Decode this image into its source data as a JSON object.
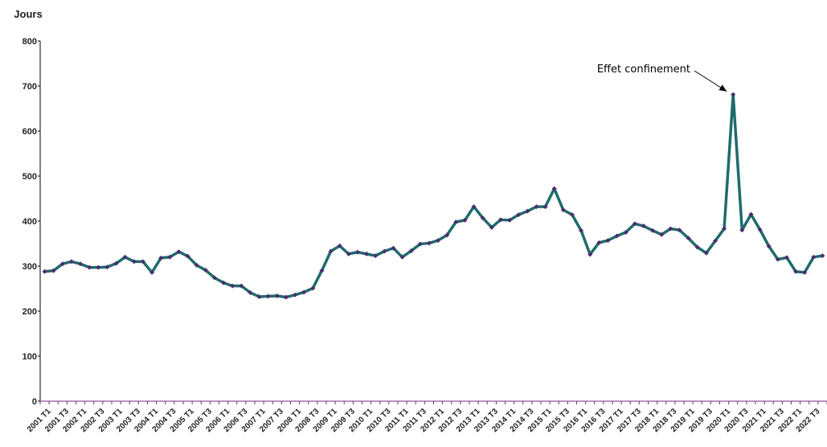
{
  "chart_data": {
    "type": "line",
    "title": "",
    "xlabel": "",
    "ylabel": "Jours",
    "ylim": [
      0,
      800
    ],
    "yticks": [
      0,
      100,
      200,
      300,
      400,
      500,
      600,
      700,
      800
    ],
    "grid": false,
    "legend": "none",
    "line_color": "#1f6b6b",
    "marker_color": "#4b2e6e",
    "axis_color": "#7d2a8a",
    "x": [
      "2001 T1",
      "2001 T2",
      "2001 T3",
      "2001 T4",
      "2002 T1",
      "2002 T2",
      "2002 T3",
      "2002 T4",
      "2003 T1",
      "2003 T2",
      "2003 T3",
      "2003 T4",
      "2004 T1",
      "2004 T2",
      "2004 T3",
      "2004 T4",
      "2005 T1",
      "2005 T2",
      "2005 T3",
      "2005 T4",
      "2006 T1",
      "2006 T2",
      "2006 T3",
      "2006 T4",
      "2007 T1",
      "2007 T2",
      "2007 T3",
      "2007 T4",
      "2008 T1",
      "2008 T2",
      "2008 T3",
      "2008 T4",
      "2009 T1",
      "2009 T2",
      "2009 T3",
      "2009 T4",
      "2010 T1",
      "2010 T2",
      "2010 T3",
      "2010 T4",
      "2011 T1",
      "2011 T2",
      "2011 T3",
      "2011 T4",
      "2012 T1",
      "2012 T2",
      "2012 T3",
      "2012 T4",
      "2013 T1",
      "2013 T2",
      "2013 T3",
      "2013 T4",
      "2014 T1",
      "2014 T2",
      "2014 T3",
      "2014 T4",
      "2015 T1",
      "2015 T2",
      "2015 T3",
      "2015 T4",
      "2016 T1",
      "2016 T2",
      "2016 T3",
      "2016 T4",
      "2017 T1",
      "2017 T2",
      "2017 T3",
      "2017 T4",
      "2018 T1",
      "2018 T2",
      "2018 T3",
      "2018 T4",
      "2019 T1",
      "2019 T2",
      "2019 T3",
      "2019 T4",
      "2020 T1",
      "2020 T2",
      "2020 T3",
      "2020 T4",
      "2021 T1",
      "2021 T2",
      "2021 T3",
      "2021 T4",
      "2022 T1",
      "2022 T2",
      "2022 T3",
      "2022 T4"
    ],
    "x_tick_labels": [
      "2001 T1",
      "2001 T3",
      "2002 T1",
      "2002 T3",
      "2003 T1",
      "2003 T3",
      "2004 T1",
      "2004 T3",
      "2005 T1",
      "2005 T3",
      "2006 T1",
      "2006 T3",
      "2007 T1",
      "2007 T3",
      "2008 T1",
      "2008 T3",
      "2009 T1",
      "2009 T3",
      "2010 T1",
      "2010 T3",
      "2011 T1",
      "2011 T3",
      "2012 T1",
      "2012 T3",
      "2013 T1",
      "2013 T3",
      "2014 T1",
      "2014 T3",
      "2015 T1",
      "2015 T3",
      "2016 T1",
      "2016 T3",
      "2017 T1",
      "2017 T3",
      "2018 T1",
      "2018 T3",
      "2019 T1",
      "2019 T3",
      "2020 T1",
      "2020 T3",
      "2021 T1",
      "2021 T3",
      "2022 T1",
      "2022 T3"
    ],
    "series": [
      {
        "values": [
          288,
          290,
          305,
          310,
          305,
          297,
          297,
          298,
          306,
          320,
          310,
          310,
          286,
          318,
          320,
          332,
          322,
          302,
          291,
          274,
          263,
          256,
          256,
          241,
          232,
          233,
          234,
          231,
          236,
          242,
          251,
          290,
          333,
          345,
          327,
          331,
          327,
          323,
          333,
          340,
          320,
          334,
          349,
          351,
          357,
          369,
          398,
          402,
          432,
          407,
          386,
          403,
          402,
          414,
          422,
          432,
          432,
          472,
          425,
          414,
          379,
          326,
          352,
          357,
          367,
          375,
          394,
          389,
          379,
          370,
          383,
          380,
          362,
          342,
          329,
          356,
          383,
          681,
          380,
          415,
          381,
          344,
          315,
          319,
          288,
          286,
          320,
          323
        ]
      }
    ],
    "annotations": [
      {
        "text": "Effet confinement",
        "target_x": "2020 T2",
        "target_y": 681
      }
    ]
  }
}
